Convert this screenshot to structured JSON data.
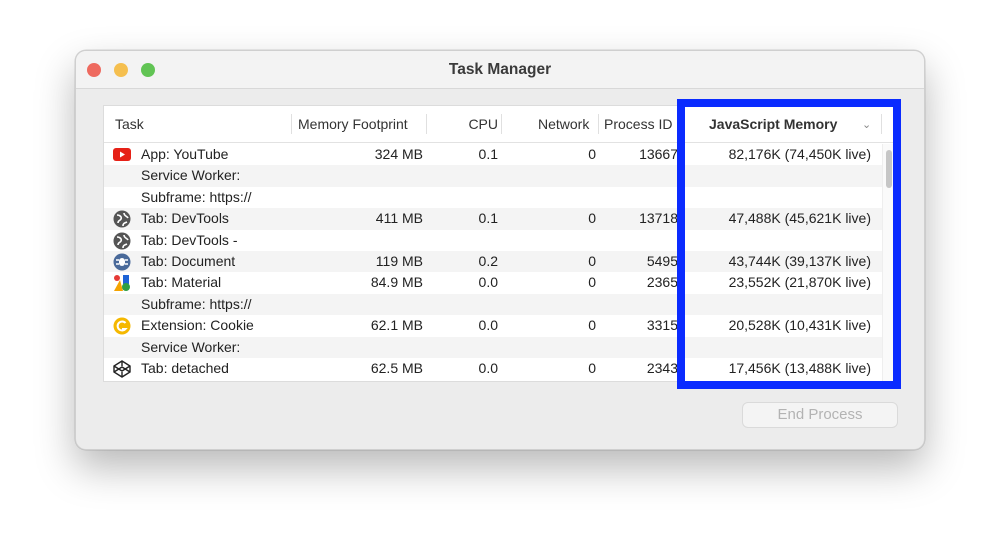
{
  "window": {
    "title": "Task Manager"
  },
  "colors": {
    "highlight": "#0a2bff",
    "close": "#ee6a5f",
    "minimize": "#f5bf4f",
    "zoom": "#61c454"
  },
  "columns": [
    "Task",
    "Memory Footprint",
    "CPU",
    "Network",
    "Process ID",
    "JavaScript Memory"
  ],
  "sort_icon": "chevron-down-icon",
  "rows": [
    {
      "icon": "youtube-icon",
      "task": "App: YouTube",
      "memory": "324 MB",
      "cpu": "0.1",
      "network": "0",
      "pid": "13667",
      "js": "82,176K (74,450K live)"
    },
    {
      "icon": "",
      "task": "Service Worker:",
      "memory": "",
      "cpu": "",
      "network": "",
      "pid": "",
      "js": ""
    },
    {
      "icon": "",
      "task": "Subframe: https://",
      "memory": "",
      "cpu": "",
      "network": "",
      "pid": "",
      "js": ""
    },
    {
      "icon": "globe-icon",
      "task": "Tab: DevTools",
      "memory": "411 MB",
      "cpu": "0.1",
      "network": "0",
      "pid": "13718",
      "js": "47,488K (45,621K live)"
    },
    {
      "icon": "globe-icon",
      "task": "Tab: DevTools -",
      "memory": "",
      "cpu": "",
      "network": "",
      "pid": "",
      "js": ""
    },
    {
      "icon": "bug-icon",
      "task": "Tab: Document",
      "memory": "119 MB",
      "cpu": "0.2",
      "network": "0",
      "pid": "5495",
      "js": "43,744K (39,137K live)"
    },
    {
      "icon": "material-icon",
      "task": "Tab: Material",
      "memory": "84.9 MB",
      "cpu": "0.0",
      "network": "0",
      "pid": "2365",
      "js": "23,552K (21,870K live)"
    },
    {
      "icon": "",
      "task": "Subframe: https://",
      "memory": "",
      "cpu": "",
      "network": "",
      "pid": "",
      "js": ""
    },
    {
      "icon": "cookie-extension-icon",
      "task": "Extension: Cookie",
      "memory": "62.1 MB",
      "cpu": "0.0",
      "network": "0",
      "pid": "3315",
      "js": "20,528K (10,431K live)"
    },
    {
      "icon": "",
      "task": "Service Worker:",
      "memory": "",
      "cpu": "",
      "network": "",
      "pid": "",
      "js": ""
    },
    {
      "icon": "codepen-icon",
      "task": "Tab: detached",
      "memory": "62.5 MB",
      "cpu": "0.0",
      "network": "0",
      "pid": "2343",
      "js": "17,456K (13,488K live)"
    }
  ],
  "buttons": {
    "end_process": "End Process"
  }
}
